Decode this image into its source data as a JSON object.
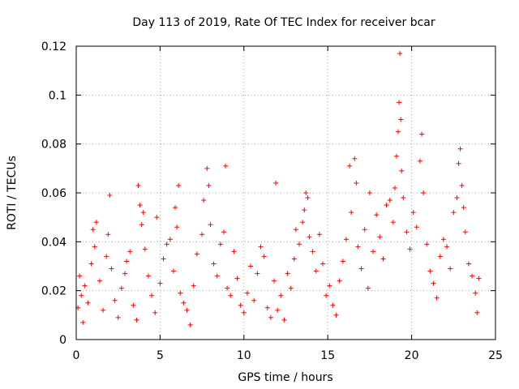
{
  "chart_data": {
    "type": "scatter",
    "title": "Day 113 of 2019, Rate Of TEC Index for receiver bcar",
    "xlabel": "GPS time / hours",
    "ylabel": "ROTI / TECUs",
    "xlim": [
      0,
      25
    ],
    "ylim": [
      0,
      0.12
    ],
    "x_ticks": [
      "0",
      "5",
      "10",
      "15",
      "20",
      "25"
    ],
    "y_ticks": [
      "0",
      "0.02",
      "0.04",
      "0.06",
      "0.08",
      "0.1",
      "0.12"
    ],
    "grid": true,
    "marker": "plus",
    "color": "#ff0000",
    "series": [
      {
        "name": "ROTI",
        "points": [
          [
            0.1,
            0.013
          ],
          [
            0.2,
            0.026
          ],
          [
            0.3,
            0.018
          ],
          [
            0.4,
            0.007
          ],
          [
            0.5,
            0.022
          ],
          [
            0.7,
            0.015
          ],
          [
            0.9,
            0.031
          ],
          [
            1.0,
            0.045
          ],
          [
            1.1,
            0.038
          ],
          [
            1.2,
            0.048
          ],
          [
            1.4,
            0.024
          ],
          [
            1.6,
            0.012
          ],
          [
            1.8,
            0.034
          ],
          [
            1.9,
            0.043
          ],
          [
            2.0,
            0.059
          ],
          [
            2.1,
            0.029
          ],
          [
            2.3,
            0.016
          ],
          [
            2.5,
            0.009
          ],
          [
            2.7,
            0.021
          ],
          [
            2.9,
            0.027
          ],
          [
            3.0,
            0.032
          ],
          [
            3.2,
            0.036
          ],
          [
            3.4,
            0.014
          ],
          [
            3.6,
            0.008
          ],
          [
            3.7,
            0.063
          ],
          [
            3.8,
            0.055
          ],
          [
            3.9,
            0.047
          ],
          [
            4.0,
            0.052
          ],
          [
            4.1,
            0.037
          ],
          [
            4.3,
            0.026
          ],
          [
            4.5,
            0.018
          ],
          [
            4.7,
            0.011
          ],
          [
            4.8,
            0.05
          ],
          [
            5.0,
            0.023
          ],
          [
            5.2,
            0.033
          ],
          [
            5.4,
            0.039
          ],
          [
            5.6,
            0.041
          ],
          [
            5.8,
            0.028
          ],
          [
            5.9,
            0.054
          ],
          [
            6.0,
            0.046
          ],
          [
            6.1,
            0.063
          ],
          [
            6.2,
            0.019
          ],
          [
            6.4,
            0.015
          ],
          [
            6.6,
            0.012
          ],
          [
            6.8,
            0.006
          ],
          [
            7.0,
            0.022
          ],
          [
            7.2,
            0.035
          ],
          [
            7.5,
            0.043
          ],
          [
            7.6,
            0.057
          ],
          [
            7.8,
            0.07
          ],
          [
            7.9,
            0.063
          ],
          [
            8.0,
            0.047
          ],
          [
            8.2,
            0.031
          ],
          [
            8.4,
            0.026
          ],
          [
            8.6,
            0.039
          ],
          [
            8.8,
            0.044
          ],
          [
            8.9,
            0.071
          ],
          [
            9.0,
            0.021
          ],
          [
            9.2,
            0.018
          ],
          [
            9.4,
            0.036
          ],
          [
            9.6,
            0.025
          ],
          [
            9.8,
            0.014
          ],
          [
            10.0,
            0.011
          ],
          [
            10.2,
            0.019
          ],
          [
            10.4,
            0.03
          ],
          [
            10.6,
            0.016
          ],
          [
            10.8,
            0.027
          ],
          [
            11.0,
            0.038
          ],
          [
            11.2,
            0.034
          ],
          [
            11.4,
            0.013
          ],
          [
            11.6,
            0.009
          ],
          [
            11.8,
            0.024
          ],
          [
            11.9,
            0.064
          ],
          [
            12.0,
            0.012
          ],
          [
            12.2,
            0.018
          ],
          [
            12.4,
            0.008
          ],
          [
            12.6,
            0.027
          ],
          [
            12.8,
            0.021
          ],
          [
            13.0,
            0.033
          ],
          [
            13.1,
            0.045
          ],
          [
            13.3,
            0.039
          ],
          [
            13.5,
            0.048
          ],
          [
            13.6,
            0.053
          ],
          [
            13.7,
            0.06
          ],
          [
            13.8,
            0.058
          ],
          [
            13.9,
            0.042
          ],
          [
            14.1,
            0.036
          ],
          [
            14.3,
            0.028
          ],
          [
            14.5,
            0.043
          ],
          [
            14.7,
            0.031
          ],
          [
            14.9,
            0.018
          ],
          [
            15.1,
            0.022
          ],
          [
            15.3,
            0.014
          ],
          [
            15.5,
            0.01
          ],
          [
            15.7,
            0.024
          ],
          [
            15.9,
            0.032
          ],
          [
            16.1,
            0.041
          ],
          [
            16.3,
            0.071
          ],
          [
            16.4,
            0.052
          ],
          [
            16.6,
            0.074
          ],
          [
            16.7,
            0.064
          ],
          [
            16.8,
            0.038
          ],
          [
            17.0,
            0.029
          ],
          [
            17.2,
            0.045
          ],
          [
            17.4,
            0.021
          ],
          [
            17.5,
            0.06
          ],
          [
            17.7,
            0.036
          ],
          [
            17.9,
            0.051
          ],
          [
            18.1,
            0.042
          ],
          [
            18.3,
            0.033
          ],
          [
            18.5,
            0.055
          ],
          [
            18.7,
            0.057
          ],
          [
            18.9,
            0.048
          ],
          [
            19.0,
            0.062
          ],
          [
            19.1,
            0.075
          ],
          [
            19.2,
            0.085
          ],
          [
            19.25,
            0.097
          ],
          [
            19.3,
            0.117
          ],
          [
            19.35,
            0.09
          ],
          [
            19.4,
            0.069
          ],
          [
            19.5,
            0.058
          ],
          [
            19.7,
            0.044
          ],
          [
            19.9,
            0.037
          ],
          [
            20.1,
            0.052
          ],
          [
            20.3,
            0.046
          ],
          [
            20.5,
            0.073
          ],
          [
            20.6,
            0.084
          ],
          [
            20.7,
            0.06
          ],
          [
            20.9,
            0.039
          ],
          [
            21.1,
            0.028
          ],
          [
            21.3,
            0.023
          ],
          [
            21.5,
            0.017
          ],
          [
            21.7,
            0.034
          ],
          [
            21.9,
            0.041
          ],
          [
            22.1,
            0.038
          ],
          [
            22.3,
            0.029
          ],
          [
            22.5,
            0.052
          ],
          [
            22.7,
            0.058
          ],
          [
            22.8,
            0.072
          ],
          [
            22.9,
            0.078
          ],
          [
            23.0,
            0.063
          ],
          [
            23.1,
            0.054
          ],
          [
            23.2,
            0.044
          ],
          [
            23.4,
            0.031
          ],
          [
            23.6,
            0.026
          ],
          [
            23.8,
            0.019
          ],
          [
            23.9,
            0.011
          ],
          [
            24.0,
            0.025
          ]
        ]
      }
    ]
  }
}
